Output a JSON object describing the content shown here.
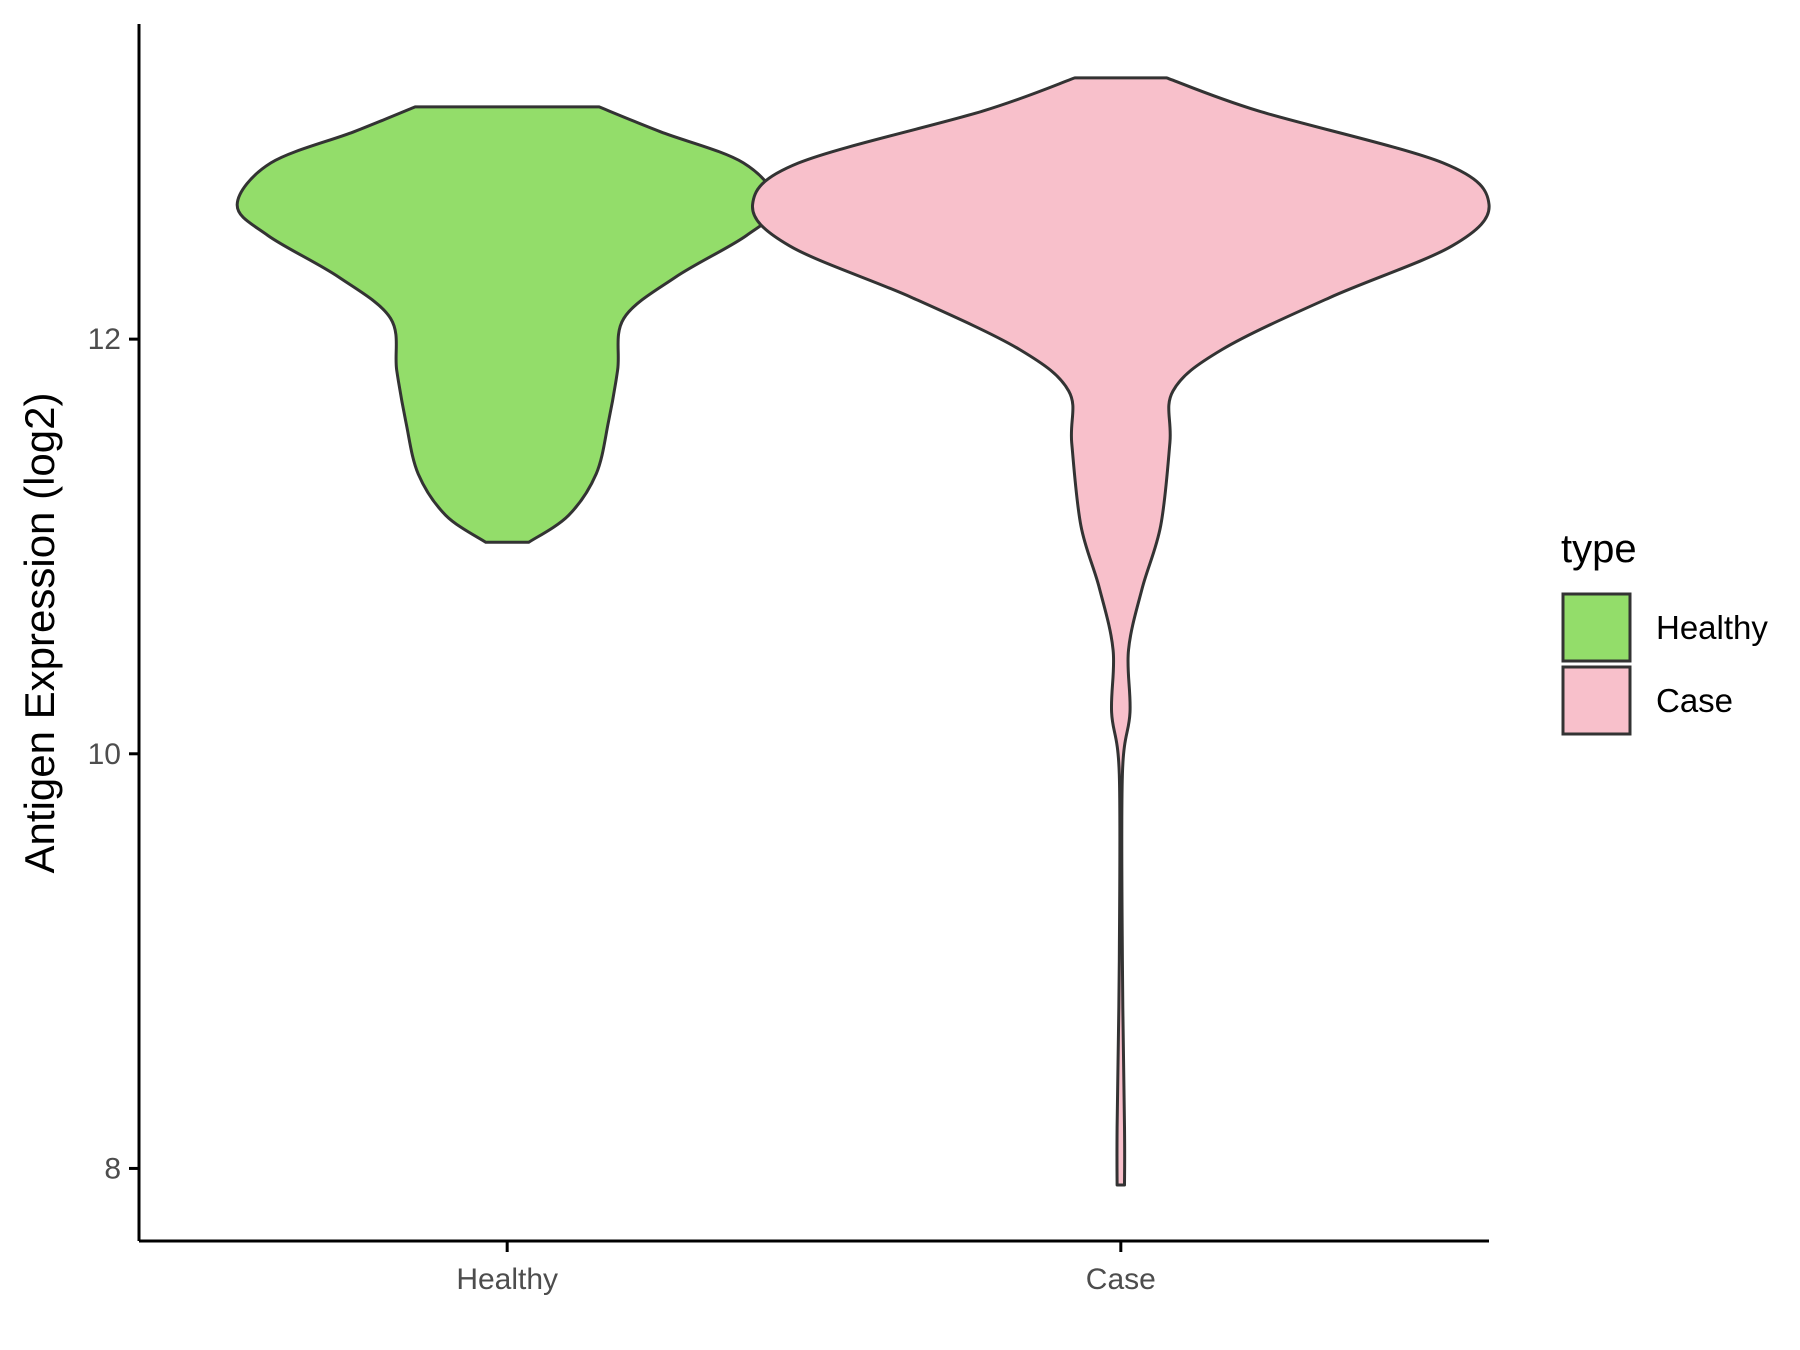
{
  "chart_data": {
    "type": "violin",
    "ylabel": "Antigen Expression (log2)",
    "xlabel": "",
    "categories": [
      "Healthy",
      "Case"
    ],
    "yticks": [
      8,
      10,
      12
    ],
    "ylim": [
      7.65,
      13.52
    ],
    "legend": {
      "title": "type",
      "placement": "right",
      "entries": [
        {
          "label": "Healthy",
          "color": "#93DD6A"
        },
        {
          "label": "Case",
          "color": "#F8C0CB"
        }
      ]
    },
    "series": [
      {
        "category": "Healthy",
        "color": "#93DD6A",
        "min": 11.02,
        "max": 13.12,
        "density_profile": [
          {
            "y": 11.02,
            "halfwidth": 0.07
          },
          {
            "y": 11.15,
            "halfwidth": 0.2
          },
          {
            "y": 11.35,
            "halfwidth": 0.29
          },
          {
            "y": 11.6,
            "halfwidth": 0.33
          },
          {
            "y": 11.85,
            "halfwidth": 0.36
          },
          {
            "y": 12.1,
            "halfwidth": 0.38
          },
          {
            "y": 12.3,
            "halfwidth": 0.55
          },
          {
            "y": 12.5,
            "halfwidth": 0.78
          },
          {
            "y": 12.65,
            "halfwidth": 0.88
          },
          {
            "y": 12.85,
            "halfwidth": 0.77
          },
          {
            "y": 13.0,
            "halfwidth": 0.5
          },
          {
            "y": 13.12,
            "halfwidth": 0.3
          }
        ]
      },
      {
        "category": "Case",
        "color": "#F8C0CB",
        "min": 7.92,
        "max": 13.26,
        "density_profile": [
          {
            "y": 7.92,
            "halfwidth": 0.012
          },
          {
            "y": 8.2,
            "halfwidth": 0.012
          },
          {
            "y": 9.0,
            "halfwidth": 0.005
          },
          {
            "y": 9.9,
            "halfwidth": 0.005
          },
          {
            "y": 10.2,
            "halfwidth": 0.03
          },
          {
            "y": 10.5,
            "halfwidth": 0.025
          },
          {
            "y": 10.8,
            "halfwidth": 0.07
          },
          {
            "y": 11.1,
            "halfwidth": 0.13
          },
          {
            "y": 11.5,
            "halfwidth": 0.16
          },
          {
            "y": 11.75,
            "halfwidth": 0.17
          },
          {
            "y": 11.95,
            "halfwidth": 0.33
          },
          {
            "y": 12.2,
            "halfwidth": 0.68
          },
          {
            "y": 12.45,
            "halfwidth": 1.08
          },
          {
            "y": 12.65,
            "halfwidth": 1.2
          },
          {
            "y": 12.85,
            "halfwidth": 1.05
          },
          {
            "y": 13.1,
            "halfwidth": 0.45
          },
          {
            "y": 13.26,
            "halfwidth": 0.15
          }
        ]
      }
    ]
  }
}
